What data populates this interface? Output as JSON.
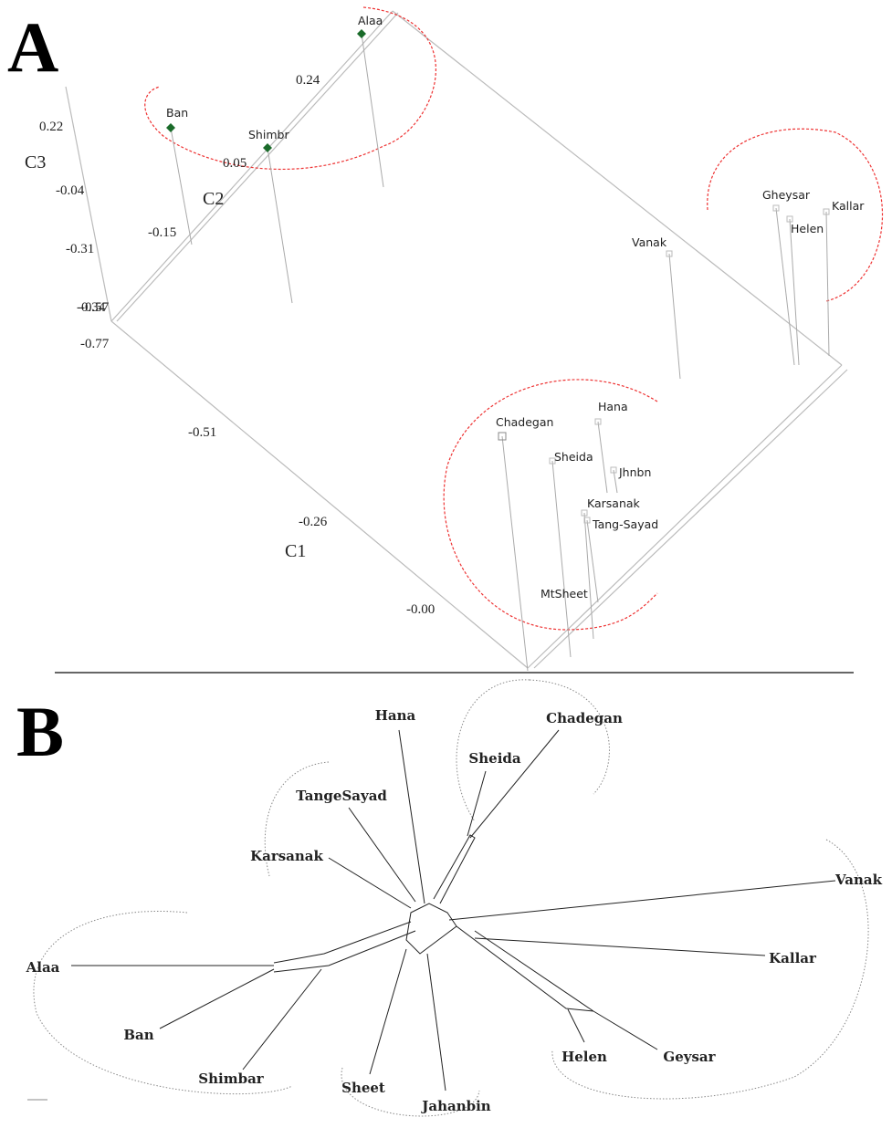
{
  "panel_a": {
    "label": "A",
    "axes": [
      {
        "name": "C1",
        "ticks": [
          "-0.77",
          "-0.51",
          "-0.26",
          "-0.00"
        ]
      },
      {
        "name": "C2",
        "ticks": [
          "-0.34",
          "-0.15",
          "0.05",
          "0.24"
        ]
      },
      {
        "name": "C3",
        "ticks": [
          "0.22",
          "-0.04",
          "-0.31",
          "-0.57"
        ]
      }
    ],
    "points": [
      "Alaa",
      "Ban",
      "Shimbr",
      "Gheysar",
      "Kallar",
      "Helen",
      "Vanak",
      "Hana",
      "Chadegan",
      "Sheida",
      "Jhnbn",
      "Karsanak",
      "Tang-Sayad",
      "MtSheet"
    ]
  },
  "panel_b": {
    "label": "B",
    "taxa": [
      "Hana",
      "Chadegan",
      "Sheida",
      "TangeSayad",
      "Karsanak",
      "Vanak",
      "Alaa",
      "Kallar",
      "Ban",
      "Helen",
      "Geysar",
      "Shimbar",
      "Sheet",
      "Jahanbin"
    ]
  }
}
